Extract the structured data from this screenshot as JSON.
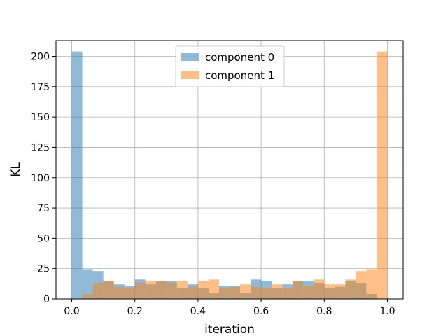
{
  "chart_data": {
    "type": "bar",
    "subtype": "histogram-overlay",
    "title": "",
    "xlabel": "iteration",
    "ylabel": "KL",
    "xlim": [
      -0.05,
      1.05
    ],
    "ylim": [
      0,
      213
    ],
    "xticks": [
      0.0,
      0.2,
      0.4,
      0.6,
      0.8,
      1.0
    ],
    "xtick_labels": [
      "0.0",
      "0.2",
      "0.4",
      "0.6",
      "0.8",
      "1.0"
    ],
    "yticks": [
      0,
      25,
      50,
      75,
      100,
      125,
      150,
      175,
      200
    ],
    "ytick_labels": [
      "0",
      "25",
      "50",
      "75",
      "100",
      "125",
      "150",
      "175",
      "200"
    ],
    "grid": true,
    "legend_position": "top-center",
    "bin_edges": [
      0.0,
      0.0333,
      0.0667,
      0.1,
      0.1333,
      0.1667,
      0.2,
      0.2333,
      0.2667,
      0.3,
      0.3333,
      0.3667,
      0.4,
      0.4333,
      0.4667,
      0.5,
      0.5333,
      0.5667,
      0.6,
      0.6333,
      0.6667,
      0.7,
      0.7333,
      0.7667,
      0.8,
      0.8333,
      0.8667,
      0.9,
      0.9333,
      0.9667,
      1.0
    ],
    "series": [
      {
        "name": "component 0",
        "color": "#1f77b4",
        "alpha": 0.5,
        "values": [
          204,
          24,
          23,
          15,
          12,
          11,
          16,
          12,
          15,
          15,
          9,
          12,
          9,
          5,
          11,
          11,
          5,
          16,
          15,
          9,
          12,
          15,
          15,
          13,
          9,
          10,
          15,
          13,
          4,
          0
        ]
      },
      {
        "name": "component 1",
        "color": "#ff7f0e",
        "alpha": 0.5,
        "values": [
          0,
          4,
          13,
          15,
          10,
          9,
          13,
          15,
          15,
          13,
          15,
          10,
          15,
          16,
          9,
          10,
          12,
          10,
          9,
          12,
          9,
          15,
          11,
          16,
          12,
          12,
          16,
          23,
          24,
          204
        ]
      }
    ]
  }
}
